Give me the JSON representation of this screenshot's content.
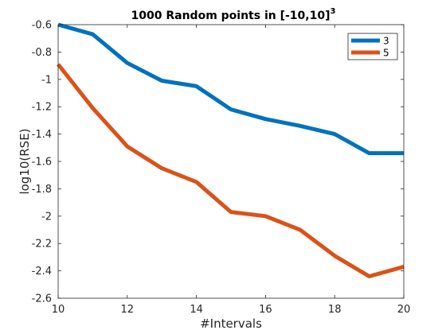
{
  "chart_data": {
    "type": "line",
    "title_main": "1000 Random points in [-10,10]",
    "title_sup": "3",
    "xlabel": "#Intervals",
    "ylabel": "log10(RSE)",
    "xlim": [
      10,
      20
    ],
    "ylim": [
      -2.6,
      -0.6
    ],
    "xticks": [
      10,
      12,
      14,
      16,
      18,
      20
    ],
    "xtick_labels": [
      "10",
      "12",
      "14",
      "16",
      "18",
      "20"
    ],
    "yticks": [
      -2.6,
      -2.4,
      -2.2,
      -2.0,
      -1.8,
      -1.6,
      -1.4,
      -1.2,
      -1.0,
      -0.8,
      -0.6
    ],
    "ytick_labels": [
      "-2.6",
      "-2.4",
      "-2.2",
      "-2",
      "-1.8",
      "-1.6",
      "-1.4",
      "-1.2",
      "-1",
      "-0.8",
      "-0.6"
    ],
    "grid": false,
    "legend_position": "top-right",
    "x": [
      10,
      11,
      12,
      13,
      14,
      15,
      16,
      17,
      18,
      19,
      20
    ],
    "series": [
      {
        "name": "3",
        "color": "#0072BD",
        "values": [
          -0.6,
          -0.67,
          -0.88,
          -1.01,
          -1.05,
          -1.22,
          -1.29,
          -1.34,
          -1.4,
          -1.54,
          -1.54
        ]
      },
      {
        "name": "5",
        "color": "#D95319",
        "values": [
          -0.89,
          -1.21,
          -1.49,
          -1.65,
          -1.75,
          -1.97,
          -2.0,
          -2.1,
          -2.29,
          -2.44,
          -2.37
        ]
      }
    ]
  }
}
